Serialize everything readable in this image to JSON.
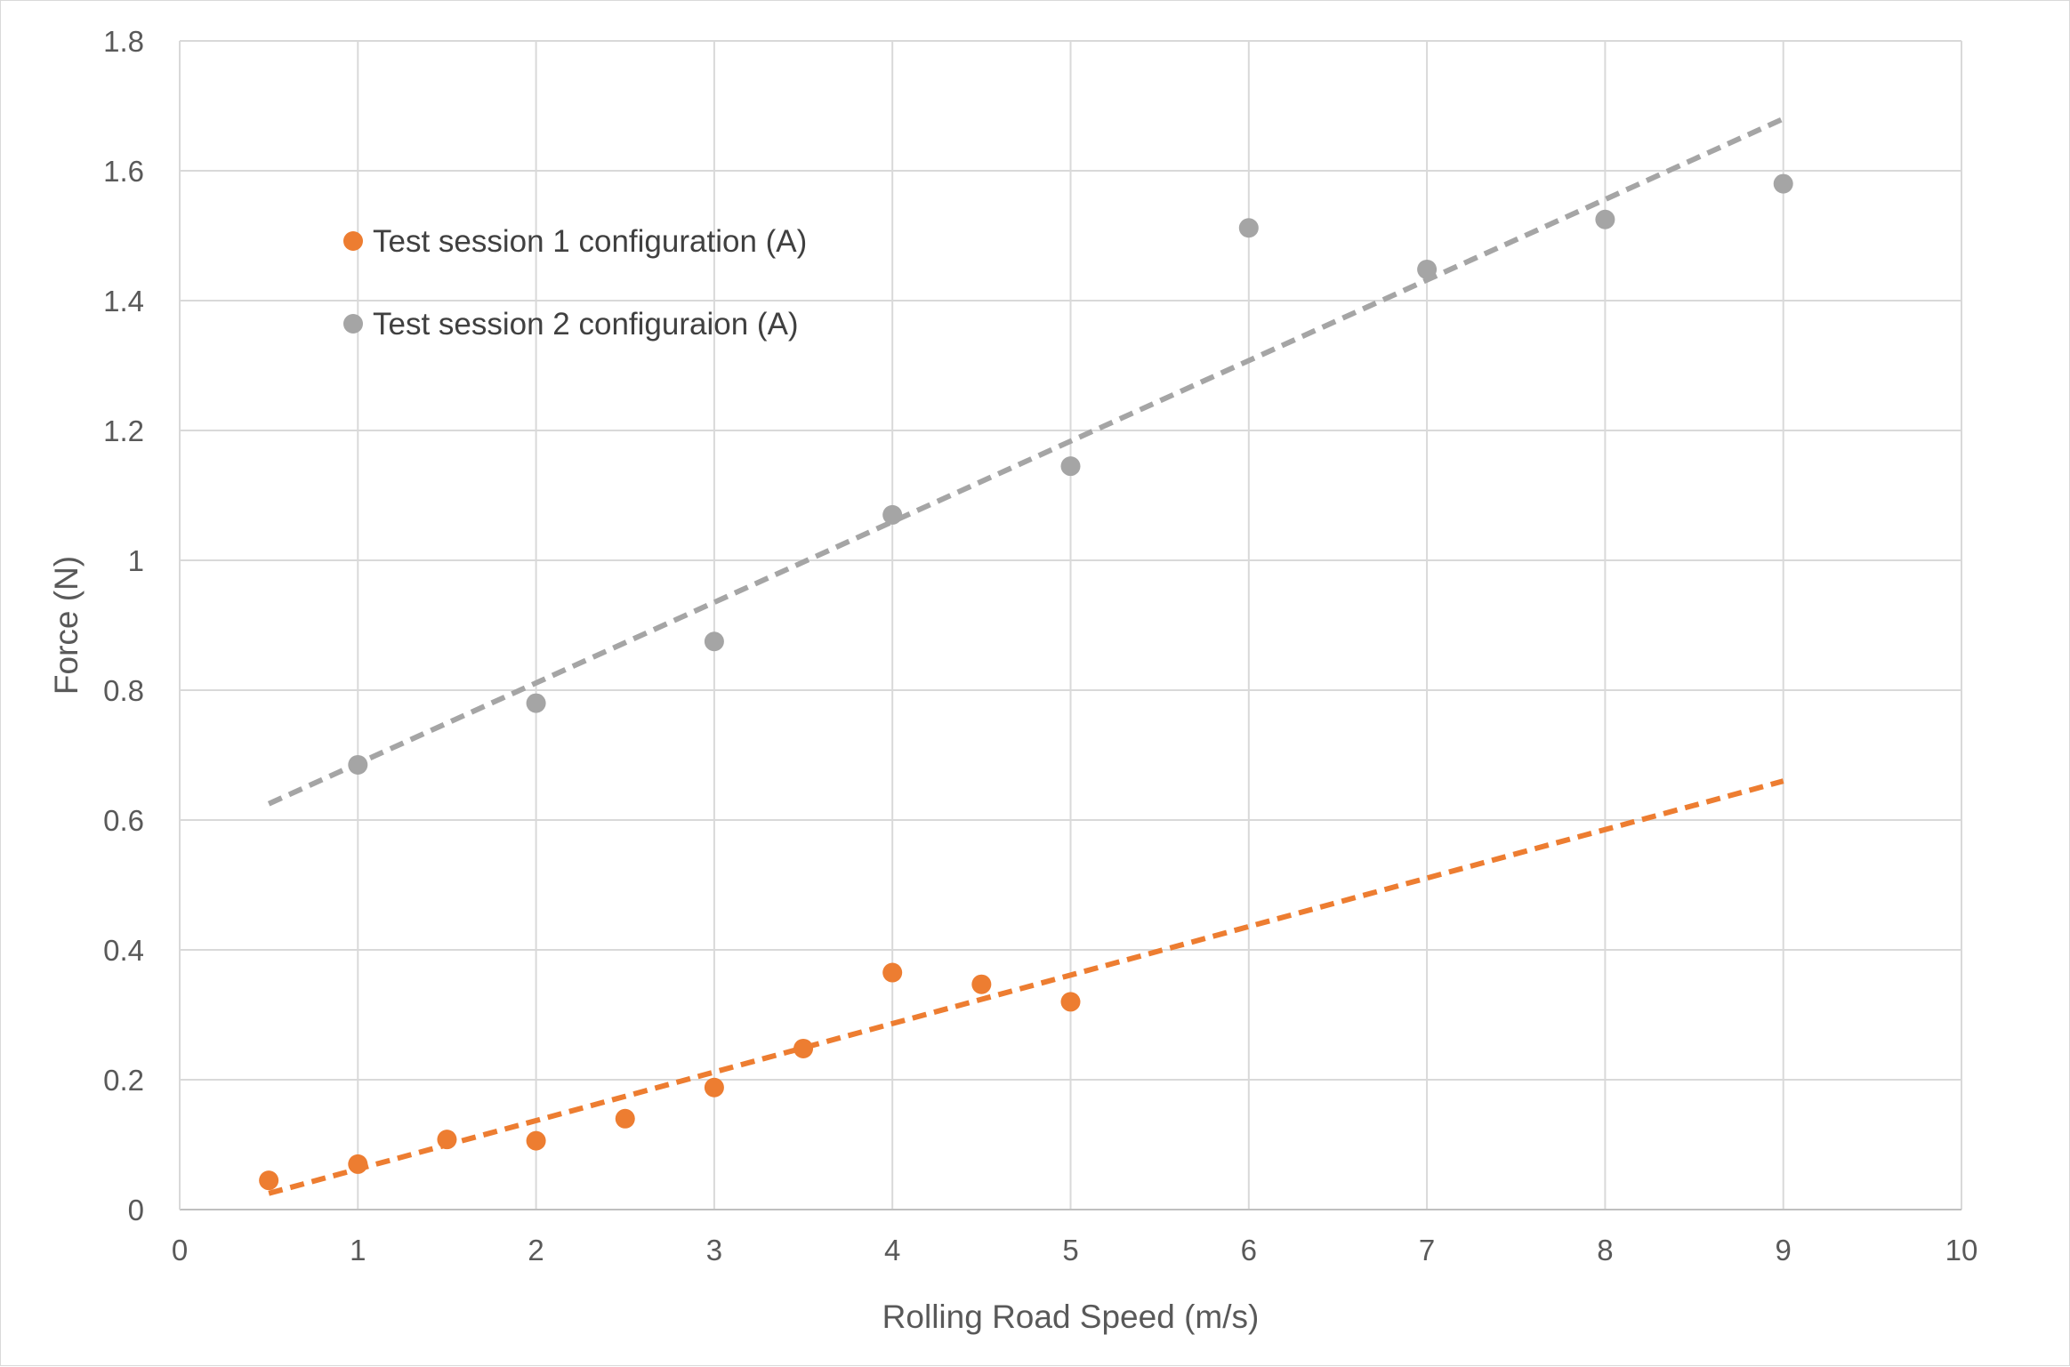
{
  "chart_data": {
    "type": "scatter",
    "title": "",
    "xlabel": "Rolling Road Speed (m/s)",
    "ylabel": "Force (N)",
    "xlim": [
      0,
      10
    ],
    "ylim": [
      0,
      1.8
    ],
    "x_ticks": [
      "0",
      "1",
      "2",
      "3",
      "4",
      "5",
      "6",
      "7",
      "8",
      "9",
      "10"
    ],
    "y_ticks": [
      "0",
      "0.2",
      "0.4",
      "0.6",
      "0.8",
      "1",
      "1.2",
      "1.4",
      "1.6",
      "1.8"
    ],
    "grid": true,
    "legend_position": "top-left",
    "series": [
      {
        "name": "Test session 1 configuration (A)",
        "color": "#ed7d31",
        "x": [
          0.5,
          1,
          1.5,
          2,
          2.5,
          3,
          3.5,
          4,
          4.5,
          5
        ],
        "y": [
          0.045,
          0.07,
          0.108,
          0.106,
          0.14,
          0.188,
          0.248,
          0.365,
          0.347,
          0.32
        ],
        "trendline": {
          "style": "dashed",
          "x": [
            0.5,
            9
          ],
          "y": [
            0.025,
            0.66
          ]
        }
      },
      {
        "name": "Test session 2 configuraion (A)",
        "color": "#a5a5a5",
        "x": [
          1,
          2,
          3,
          4,
          5,
          6,
          7,
          8,
          9
        ],
        "y": [
          0.685,
          0.78,
          0.875,
          1.07,
          1.145,
          1.512,
          1.448,
          1.525,
          1.58
        ],
        "trendline": {
          "style": "dashed",
          "x": [
            0.5,
            9
          ],
          "y": [
            0.625,
            1.68
          ]
        }
      }
    ]
  }
}
